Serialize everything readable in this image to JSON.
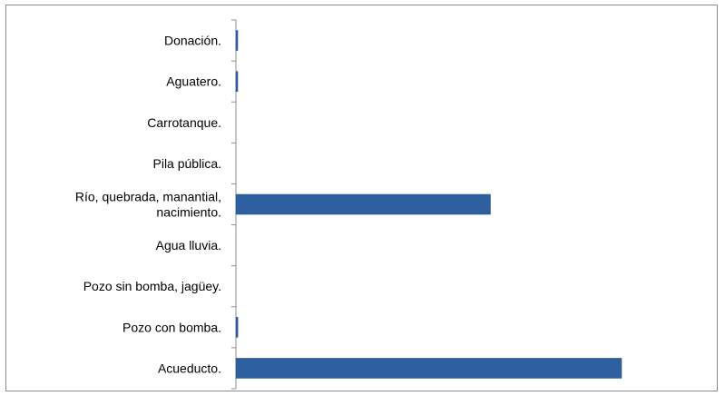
{
  "chart_data": {
    "type": "bar",
    "orientation": "horizontal",
    "title": "",
    "xlabel": "",
    "ylabel": "",
    "categories": [
      "Donación.",
      "Aguatero.",
      "Carrotanque.",
      "Pila pública.",
      "Río, quebrada, manantial, nacimiento.",
      "Agua lluvia.",
      "Pozo sin bomba, jagüey.",
      "Pozo con bomba.",
      "Acueducto."
    ],
    "category_lines": [
      [
        "Donación."
      ],
      [
        "Aguatero."
      ],
      [
        "Carrotanque."
      ],
      [
        "Pila pública."
      ],
      [
        "Río, quebrada, manantial,",
        "nacimiento."
      ],
      [
        "Agua lluvia."
      ],
      [
        "Pozo sin bomba, jagüey."
      ],
      [
        "Pozo con bomba."
      ],
      [
        "Acueducto."
      ]
    ],
    "values": [
      0.3,
      0.3,
      0,
      0,
      66,
      0,
      0,
      0.5,
      100
    ],
    "xlim": [
      0,
      100
    ],
    "grid": false,
    "legend": "none",
    "bar_color": "#2e5f9e"
  }
}
